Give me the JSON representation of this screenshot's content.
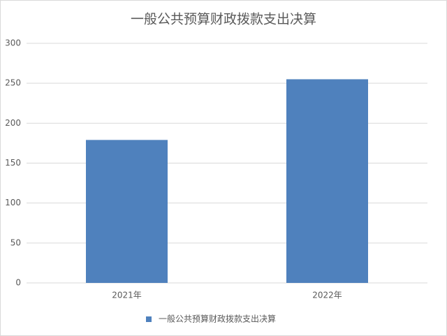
{
  "chart_data": {
    "type": "bar",
    "title": "一般公共预算财政拨款支出决算",
    "categories": [
      "2021年",
      "2022年"
    ],
    "series": [
      {
        "name": "一般公共预算财政拨款支出决算",
        "color": "#4f81bd",
        "values": [
          179,
          255
        ]
      }
    ],
    "ylim": [
      0,
      300
    ],
    "yticks": [
      0,
      50,
      100,
      150,
      200,
      250,
      300
    ],
    "grid": true,
    "legend": "bottom"
  }
}
